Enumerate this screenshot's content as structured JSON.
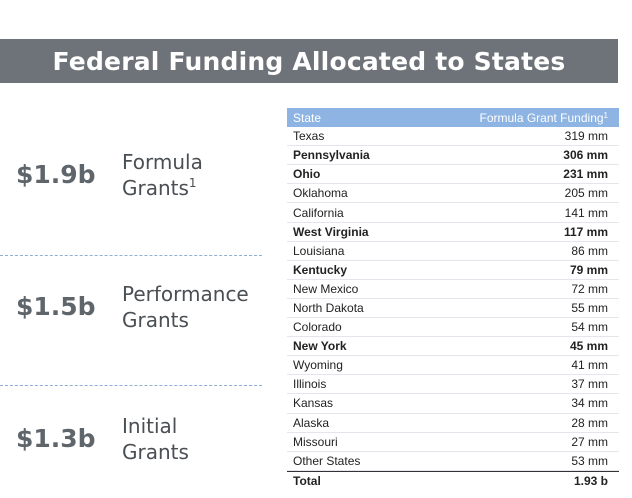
{
  "title": "Federal Funding Allocated to States",
  "metrics": [
    {
      "amount": "$1.9b",
      "label_line1": "Formula",
      "label_line2": "Grants",
      "footnote": "1"
    },
    {
      "amount": "$1.5b",
      "label_line1": "Performance",
      "label_line2": "Grants",
      "footnote": ""
    },
    {
      "amount": "$1.3b",
      "label_line1": "Initial",
      "label_line2": "Grants",
      "footnote": ""
    }
  ],
  "table": {
    "header_state": "State",
    "header_value": "Formula Grant Funding",
    "header_footnote": "1",
    "rows": [
      {
        "state": "Texas",
        "value": "319 mm",
        "bold": false
      },
      {
        "state": "Pennsylvania",
        "value": "306 mm",
        "bold": true
      },
      {
        "state": "Ohio",
        "value": "231 mm",
        "bold": true
      },
      {
        "state": "Oklahoma",
        "value": "205 mm",
        "bold": false
      },
      {
        "state": "California",
        "value": "141 mm",
        "bold": false
      },
      {
        "state": "West Virginia",
        "value": "117 mm",
        "bold": true
      },
      {
        "state": "Louisiana",
        "value": "86 mm",
        "bold": false
      },
      {
        "state": "Kentucky",
        "value": "79 mm",
        "bold": true
      },
      {
        "state": "New Mexico",
        "value": "72 mm",
        "bold": false
      },
      {
        "state": "North Dakota",
        "value": "55 mm",
        "bold": false
      },
      {
        "state": "Colorado",
        "value": "54 mm",
        "bold": false
      },
      {
        "state": "New York",
        "value": "45 mm",
        "bold": true
      },
      {
        "state": "Wyoming",
        "value": "41 mm",
        "bold": false
      },
      {
        "state": "Illinois",
        "value": "37 mm",
        "bold": false
      },
      {
        "state": "Kansas",
        "value": "34 mm",
        "bold": false
      },
      {
        "state": "Alaska",
        "value": "28 mm",
        "bold": false
      },
      {
        "state": "Missouri",
        "value": "27 mm",
        "bold": false
      },
      {
        "state": "Other States",
        "value": "53 mm",
        "bold": false
      }
    ],
    "total_label": "Total",
    "total_value": "1.93 b"
  },
  "colors": {
    "title_bar": "#6d7378",
    "table_header": "#8db4e2",
    "amount_text": "#5f666b",
    "divider": "#8fb0d4"
  }
}
